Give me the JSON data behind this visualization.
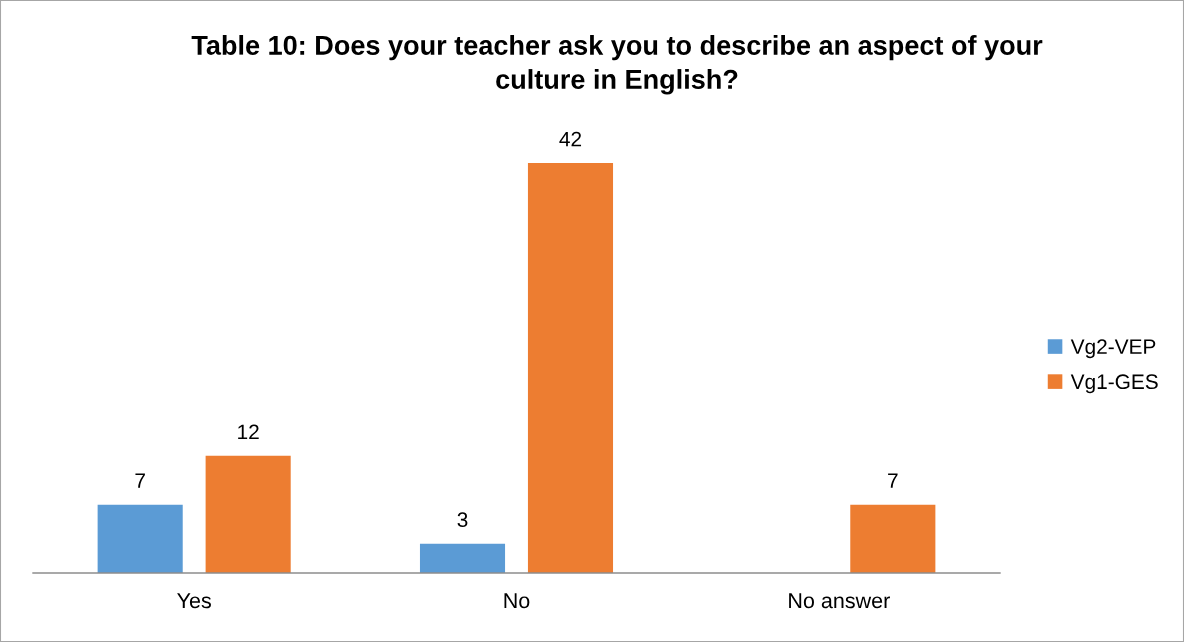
{
  "chart_data": {
    "type": "bar",
    "title": "Table 10: Does your teacher ask you to describe an aspect of your culture in English?",
    "categories": [
      "Yes",
      "No",
      "No answer"
    ],
    "series": [
      {
        "name": "Vg2-VEP",
        "color": "#5b9bd5",
        "values": [
          7,
          3,
          null
        ]
      },
      {
        "name": "Vg1-GES",
        "color": "#ed7d31",
        "values": [
          12,
          42,
          7
        ]
      }
    ],
    "data_labels": true,
    "legend": "right"
  }
}
